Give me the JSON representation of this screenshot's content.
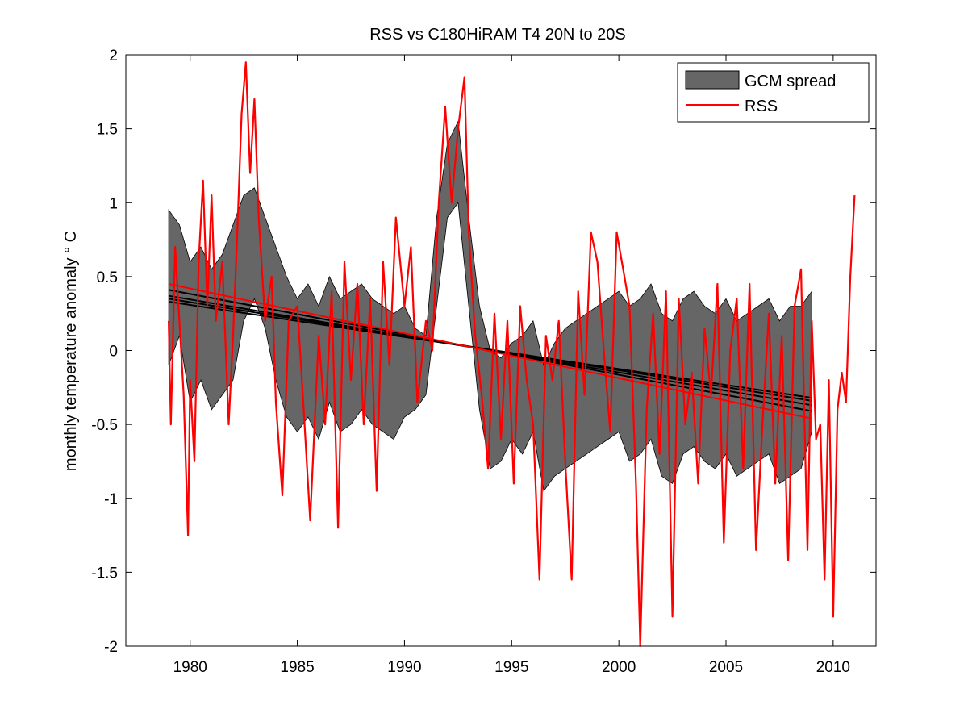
{
  "chart_data": {
    "type": "line",
    "title": "RSS vs C180HiRAM T4 20N to 20S",
    "xlabel": "",
    "ylabel": "monthly temperature anomaly  ° C",
    "xlim": [
      1977,
      2012
    ],
    "ylim": [
      -2,
      2
    ],
    "xticks": [
      1980,
      1985,
      1990,
      1995,
      2000,
      2005,
      2010
    ],
    "yticks": [
      -2,
      -1.5,
      -1,
      -0.5,
      0,
      0.5,
      1,
      1.5,
      2
    ],
    "grid": false,
    "legend": {
      "position": "top-right",
      "entries": [
        "GCM spread",
        "RSS"
      ]
    },
    "colors": {
      "spread_fill": "#666666",
      "spread_edge": "#000000",
      "rss": "#ff0000",
      "trend_gcm": "#000000",
      "trend_rss": "#ff0000"
    },
    "series": [
      {
        "name": "GCM spread",
        "kind": "band",
        "x": [
          1979.0,
          1979.5,
          1980.0,
          1980.5,
          1981.0,
          1981.5,
          1982.0,
          1982.5,
          1983.0,
          1983.5,
          1984.0,
          1984.5,
          1985.0,
          1985.5,
          1986.0,
          1986.5,
          1987.0,
          1987.5,
          1988.0,
          1988.5,
          1989.0,
          1989.5,
          1990.0,
          1990.5,
          1991.0,
          1991.5,
          1992.0,
          1992.5,
          1993.0,
          1993.5,
          1994.0,
          1994.5,
          1995.0,
          1995.5,
          1996.0,
          1996.5,
          1997.0,
          1997.5,
          1998.0,
          1998.5,
          1999.0,
          1999.5,
          2000.0,
          2000.5,
          2001.0,
          2001.5,
          2002.0,
          2002.5,
          2003.0,
          2003.5,
          2004.0,
          2004.5,
          2005.0,
          2005.5,
          2006.0,
          2006.5,
          2007.0,
          2007.5,
          2008.0,
          2008.5,
          2009.0
        ],
        "upper": [
          0.95,
          0.85,
          0.6,
          0.7,
          0.55,
          0.65,
          0.85,
          1.05,
          1.1,
          0.9,
          0.7,
          0.5,
          0.35,
          0.45,
          0.3,
          0.5,
          0.35,
          0.4,
          0.45,
          0.35,
          0.3,
          0.25,
          0.3,
          0.15,
          0.1,
          0.9,
          1.4,
          1.55,
          0.9,
          0.3,
          0.0,
          -0.05,
          0.05,
          0.1,
          0.2,
          -0.1,
          0.05,
          0.15,
          0.2,
          0.25,
          0.3,
          0.35,
          0.4,
          0.3,
          0.35,
          0.45,
          0.25,
          0.2,
          0.35,
          0.4,
          0.3,
          0.25,
          0.35,
          0.2,
          0.25,
          0.3,
          0.35,
          0.2,
          0.3,
          0.3,
          0.4
        ],
        "lower": [
          -0.1,
          0.1,
          -0.35,
          -0.2,
          -0.4,
          -0.3,
          -0.2,
          0.2,
          0.35,
          0.15,
          -0.2,
          -0.45,
          -0.55,
          -0.45,
          -0.6,
          -0.35,
          -0.55,
          -0.5,
          -0.4,
          -0.5,
          -0.55,
          -0.6,
          -0.45,
          -0.4,
          -0.3,
          0.3,
          0.9,
          1.0,
          0.3,
          -0.4,
          -0.8,
          -0.75,
          -0.6,
          -0.7,
          -0.55,
          -0.95,
          -0.85,
          -0.8,
          -0.75,
          -0.7,
          -0.65,
          -0.6,
          -0.55,
          -0.75,
          -0.7,
          -0.6,
          -0.85,
          -0.9,
          -0.7,
          -0.65,
          -0.75,
          -0.8,
          -0.7,
          -0.85,
          -0.8,
          -0.75,
          -0.7,
          -0.9,
          -0.85,
          -0.8,
          -0.55
        ]
      },
      {
        "name": "RSS",
        "kind": "line",
        "x": [
          1979.0,
          1979.1,
          1979.3,
          1979.5,
          1979.7,
          1979.9,
          1980.0,
          1980.2,
          1980.4,
          1980.6,
          1980.8,
          1981.0,
          1981.2,
          1981.5,
          1981.8,
          1982.0,
          1982.2,
          1982.4,
          1982.6,
          1982.8,
          1983.0,
          1983.2,
          1983.5,
          1983.8,
          1984.0,
          1984.3,
          1984.6,
          1985.0,
          1985.3,
          1985.6,
          1986.0,
          1986.3,
          1986.6,
          1986.9,
          1987.2,
          1987.5,
          1987.8,
          1988.1,
          1988.4,
          1988.7,
          1989.0,
          1989.3,
          1989.6,
          1990.0,
          1990.3,
          1990.6,
          1991.0,
          1991.3,
          1991.6,
          1991.9,
          1992.2,
          1992.5,
          1992.8,
          1993.0,
          1993.3,
          1993.6,
          1993.9,
          1994.2,
          1994.5,
          1994.8,
          1995.1,
          1995.4,
          1995.7,
          1996.0,
          1996.3,
          1996.6,
          1996.9,
          1997.2,
          1997.5,
          1997.8,
          1998.1,
          1998.4,
          1998.7,
          1999.0,
          1999.3,
          1999.6,
          1999.9,
          2000.2,
          2000.5,
          2000.8,
          2001.0,
          2001.3,
          2001.6,
          2001.9,
          2002.2,
          2002.5,
          2002.8,
          2003.1,
          2003.4,
          2003.7,
          2004.0,
          2004.3,
          2004.6,
          2004.9,
          2005.2,
          2005.5,
          2005.8,
          2006.1,
          2006.4,
          2006.7,
          2007.0,
          2007.3,
          2007.6,
          2007.9,
          2008.2,
          2008.5,
          2008.8,
          2009.0,
          2009.2,
          2009.4,
          2009.6,
          2009.8,
          2010.0,
          2010.2,
          2010.4,
          2010.6,
          2010.8,
          2011.0
        ],
        "y": [
          0.2,
          -0.5,
          0.7,
          0.2,
          -0.3,
          -1.25,
          -0.2,
          -0.75,
          0.6,
          1.15,
          0.3,
          1.05,
          0.2,
          0.6,
          -0.5,
          0.1,
          0.8,
          1.6,
          1.95,
          1.2,
          1.7,
          0.9,
          0.2,
          0.5,
          -0.35,
          -0.98,
          0.2,
          0.3,
          -0.4,
          -1.15,
          0.1,
          -0.5,
          0.4,
          -1.2,
          0.6,
          -0.2,
          0.45,
          -0.5,
          0.35,
          -0.95,
          0.6,
          -0.1,
          0.9,
          0.3,
          0.7,
          -0.35,
          0.2,
          0.0,
          1.0,
          1.65,
          1.0,
          1.5,
          1.85,
          0.8,
          0.1,
          -0.3,
          -0.8,
          0.25,
          -0.6,
          0.2,
          -0.9,
          0.3,
          -0.2,
          -0.5,
          -1.55,
          0.1,
          -0.2,
          0.2,
          -0.75,
          -1.55,
          0.4,
          -0.3,
          0.8,
          0.6,
          0.0,
          -0.55,
          0.8,
          0.55,
          0.3,
          -0.9,
          -2.0,
          -0.4,
          0.25,
          -0.7,
          0.4,
          -1.8,
          0.35,
          -0.5,
          -0.15,
          -0.9,
          0.15,
          -0.3,
          0.45,
          -1.3,
          0.0,
          0.35,
          -0.8,
          0.45,
          -1.35,
          -0.5,
          0.25,
          -0.9,
          0.1,
          -1.42,
          0.3,
          0.55,
          -1.35,
          0.2,
          -0.6,
          -0.5,
          -1.55,
          -0.2,
          -1.8,
          -0.4,
          -0.15,
          -0.35,
          0.5,
          1.05
        ]
      }
    ],
    "trendlines": [
      {
        "series": "RSS",
        "x": [
          1979.0,
          2009.0
        ],
        "y": [
          0.45,
          -0.46
        ]
      },
      {
        "series": "GCM",
        "x": [
          1979.0,
          2009.0
        ],
        "y": [
          0.41,
          -0.41
        ]
      },
      {
        "series": "GCM",
        "x": [
          1979.0,
          2009.0
        ],
        "y": [
          0.37,
          -0.37
        ]
      },
      {
        "series": "GCM",
        "x": [
          1979.0,
          2009.0
        ],
        "y": [
          0.35,
          -0.34
        ]
      },
      {
        "series": "GCM",
        "x": [
          1979.0,
          2009.0
        ],
        "y": [
          0.33,
          -0.32
        ]
      }
    ]
  }
}
